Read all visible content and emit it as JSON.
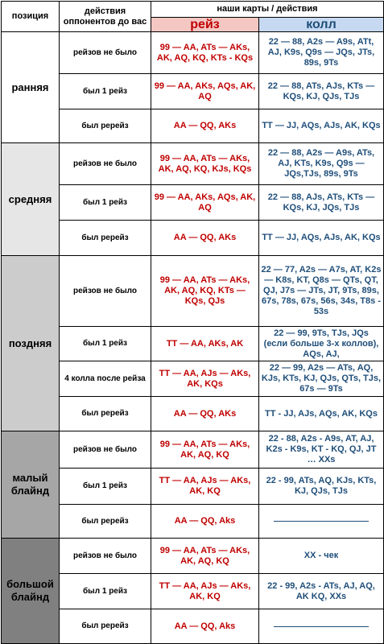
{
  "header": {
    "position": "позиция",
    "opponents": "действия оппонентов до вас",
    "our": "наши карты / действия",
    "raise": "рейз",
    "call": "колл"
  },
  "groups": [
    {
      "name": "ранняя",
      "color": "#ffffff",
      "rows": [
        {
          "action": "рейзов не было",
          "raise": "99 — AA, ATs — AKs, AK, AQ, KQ, KTs - KQs",
          "call": "22 — 88, A2s — A9s, ATt, AJ, K9s, Q9s — JQs, JTs, 89s, 9Ts"
        },
        {
          "action": "был 1 рейз",
          "raise": "99 — AA, AKs, AQs, AK, AQ",
          "call": "22 — 88, ATs, AJs, KTs — KQs, KJ, QJs, TJs"
        },
        {
          "action": "был ререйз",
          "raise": "AA — QQ, AKs",
          "call": "TT — JJ, AQs, AJs, AK, KQs"
        }
      ]
    },
    {
      "name": "средняя",
      "color": "#e6e6e6",
      "rows": [
        {
          "action": "рейзов не было",
          "raise": "99 — AA, ATs — AKs, AK, AQ, KQ, KJs, KQs",
          "call": "22 — 88, A2s — A9s, ATs, AJ, KTs, K9s, Q9s — JQs,TJs, 89s, 9Ts"
        },
        {
          "action": "был 1 рейз",
          "raise": "99 — AA, AKs, AQs, AK, AQ",
          "call": "22 — 88, AJs, ATs, KTs — KQs, KJ, JQs, TJs"
        },
        {
          "action": "был ререйз",
          "raise": "AA — QQ, AKs",
          "call": "TT — JJ, AQs, AJs, AK, KQs"
        }
      ]
    },
    {
      "name": "поздняя",
      "color": "#cccccc",
      "rows": [
        {
          "action": "рейзов не было",
          "raise": "99 — AA, ATs — AKs, AK, AQ, KQ, KTs — KQs, QJs",
          "call": "22 — 77, A2s — A7s, AT, K2s — K8s, KT, Q8s — QTs, QT, QJ, J7s — JTs, JT, 9Ts, 89s, 67s, 78s, 67s, 56s, 34s, T8s - 53s"
        },
        {
          "action": "был 1 рейз",
          "raise": "TT — AA, AKs, AK",
          "call": "22 — 99, 9Ts, TJs, JQs (если больше 3-х коллов), AQs, AJ,"
        },
        {
          "action": "4 колла после рейза",
          "raise": "TT — AA, AJs — AKs, AK, KQs",
          "call": "22 — 99, A2s — ATs, AQ, KJs, KTs, KJ, QJs, QTs, TJs, 67s — 9Ts"
        },
        {
          "action": "был ререйз",
          "raise": "AA — QQ, AKs",
          "call": "TT - JJ, AJs, AQs, AK, KQs"
        }
      ]
    },
    {
      "name": "малый блайнд",
      "color": "#a6a6a6",
      "rows": [
        {
          "action": "рейзов не было",
          "raise": "99 — AA, ATs — AKs, AK, AQ, KQ",
          "call": "22 - 88, A2s - A9s, AT, AJ, K2s - K9s, KT - KQ, QJ, JT … XXs"
        },
        {
          "action": "был 1 рейз",
          "raise": "TT — AA, AJs — AKs, AK, KQ",
          "call": "22 - 99, ATs, AQ, KJs, KTs, KJ, QJs, TJs"
        },
        {
          "action": "был ререйз",
          "raise": "AA — QQ, Aks",
          "call": ""
        }
      ]
    },
    {
      "name": "большой блайнд",
      "color": "#808080",
      "rows": [
        {
          "action": "рейзов не было",
          "raise": "99 — AA, ATs — AKs, AK, AQ, KQ",
          "call": "XX - чек"
        },
        {
          "action": "был 1 рейз",
          "raise": "TT — AA, AJs — AKs, AK, KQ",
          "call": "22 - 99, A2s - ATs, AJ, AQ, AK KQ, XXs"
        },
        {
          "action": "был ререйз",
          "raise": "AA — QQ, Aks",
          "call": ""
        }
      ]
    }
  ]
}
